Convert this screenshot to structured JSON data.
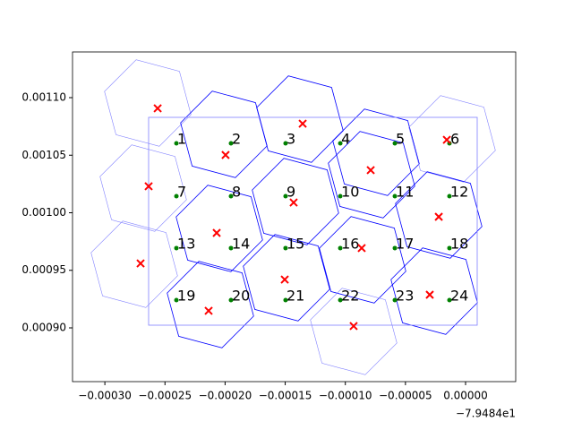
{
  "chart_data": {
    "type": "scatter",
    "x_offset_label": "−7.9484e1",
    "xlim": [
      -0.0003269,
      4.17e-05
    ],
    "ylim": [
      0.0008533,
      0.0011397
    ],
    "xticks": [
      {
        "value": -0.0003,
        "label": "−0.00030"
      },
      {
        "value": -0.00025,
        "label": "−0.00025"
      },
      {
        "value": -0.0002,
        "label": "−0.00020"
      },
      {
        "value": -0.00015,
        "label": "−0.00015"
      },
      {
        "value": -0.0001,
        "label": "−0.00010"
      },
      {
        "value": -5e-05,
        "label": "−0.00005"
      },
      {
        "value": 0,
        "label": "0.00000"
      }
    ],
    "yticks": [
      {
        "value": 0.0009,
        "label": "0.00090"
      },
      {
        "value": 0.00095,
        "label": "0.00095"
      },
      {
        "value": 0.001,
        "label": "0.00100"
      },
      {
        "value": 0.00105,
        "label": "0.00105"
      },
      {
        "value": 0.0011,
        "label": "0.00110"
      }
    ],
    "series": [
      {
        "color": "#008000",
        "marker": "dot",
        "labels": [
          "1",
          "2",
          "3",
          "4",
          "5",
          "6",
          "7",
          "8",
          "9",
          "10",
          "11",
          "12",
          "13",
          "14",
          "15",
          "16",
          "17",
          "18",
          "19",
          "20",
          "21",
          "22",
          "23",
          "24"
        ],
        "x": [
          -0.0002405,
          -0.0001951,
          -0.0001497,
          -0.0001042,
          -5.88e-05,
          -1.34e-05,
          -0.0002405,
          -0.0001951,
          -0.0001497,
          -0.0001042,
          -5.88e-05,
          -1.34e-05,
          -0.0002405,
          -0.0001951,
          -0.0001497,
          -0.0001042,
          -5.88e-05,
          -1.34e-05,
          -0.0002405,
          -0.0001951,
          -0.0001497,
          -0.0001042,
          -5.88e-05,
          -1.34e-05
        ],
        "values": [
          0.0010603,
          0.0010603,
          0.0010603,
          0.0010603,
          0.0010603,
          0.0010603,
          0.0010144,
          0.0010144,
          0.0010144,
          0.0010144,
          0.0010144,
          0.0010144,
          0.0009693,
          0.0009693,
          0.0009693,
          0.0009693,
          0.0009693,
          0.0009693,
          0.0009241,
          0.0009241,
          0.0009241,
          0.0009241,
          0.0009241,
          0.0009241
        ]
      },
      {
        "color": "#ff0000",
        "marker": "x",
        "x": [
          -0.0002561,
          -0.0001355,
          -0.0001996,
          -7.89e-05,
          -1.56e-05,
          -0.0002636,
          -0.000143,
          -2.23e-05,
          -0.000207,
          -8.64e-05,
          -0.0002703,
          -0.0001504,
          -0.0002137,
          -2.98e-05,
          -9.31e-05
        ],
        "values": [
          0.0010907,
          0.0010774,
          0.0010502,
          0.001037,
          0.0010634,
          0.001023,
          0.0010089,
          0.0009965,
          0.0009825,
          0.0009693,
          0.000956,
          0.000942,
          0.0009148,
          0.0009288,
          0.0009016
        ]
      }
    ]
  }
}
